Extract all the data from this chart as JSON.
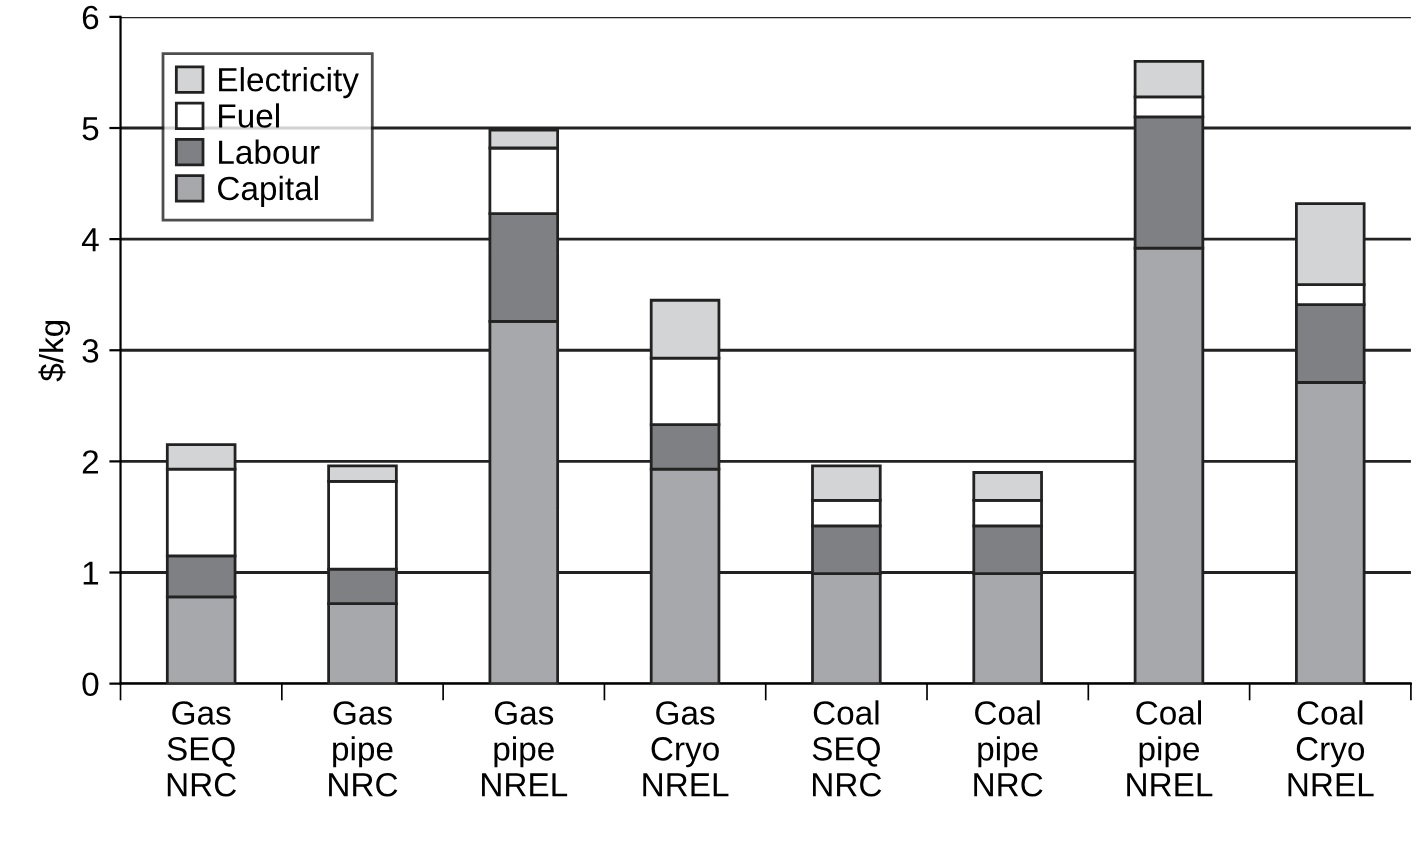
{
  "chart_data": {
    "type": "bar",
    "stacked": true,
    "ylabel": "$/kg",
    "categories": [
      "Gas\nSEQ\nNRC",
      "Gas\npipe\nNRC",
      "Gas\npipe\nNREL",
      "Gas\nCryo\nNREL",
      "Coal\nSEQ\nNRC",
      "Coal\npipe\nNRC",
      "Coal\npipe\nNREL",
      "Coal\nCryo\nNREL"
    ],
    "series": [
      {
        "name": "Capital",
        "color": "#a7a8ab",
        "values": [
          0.78,
          0.72,
          3.26,
          1.93,
          0.99,
          0.99,
          3.92,
          2.71
        ]
      },
      {
        "name": "Labour",
        "color": "#7f8083",
        "values": [
          0.37,
          0.31,
          0.97,
          0.4,
          0.43,
          0.43,
          1.18,
          0.7
        ]
      },
      {
        "name": "Fuel",
        "color": "#ffffff",
        "values": [
          0.78,
          0.79,
          0.59,
          0.6,
          0.23,
          0.23,
          0.18,
          0.18
        ]
      },
      {
        "name": "Electricity",
        "color": "#d3d4d5",
        "values": [
          0.22,
          0.14,
          0.16,
          0.52,
          0.31,
          0.25,
          0.32,
          0.73
        ]
      }
    ],
    "ylim": [
      0,
      6
    ],
    "yticks": [
      0,
      1,
      2,
      3,
      4,
      5,
      6
    ],
    "grid": "y",
    "legend": "top left"
  }
}
